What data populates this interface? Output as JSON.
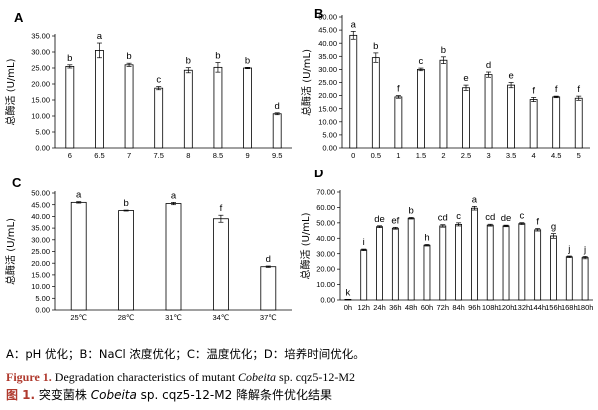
{
  "chart_data": [
    {
      "type": "bar",
      "panel": "A",
      "ylabel": "总酶活 (U/mL)",
      "ylim": [
        0,
        35
      ],
      "yticks": [
        "0.00",
        "5.00",
        "10.00",
        "15.00",
        "20.00",
        "25.00",
        "30.00",
        "35.00"
      ],
      "categories": [
        "6",
        "6.5",
        "7",
        "7.5",
        "8",
        "8.5",
        "9",
        "9.5"
      ],
      "values": [
        25.5,
        30.5,
        26.0,
        18.7,
        24.3,
        25.2,
        25.0,
        10.7
      ],
      "errors": [
        0.5,
        2.3,
        0.5,
        0.5,
        0.8,
        1.5,
        0.2,
        0.3
      ],
      "letters": [
        "b",
        "a",
        "b",
        "c",
        "b",
        "b",
        "b",
        "d"
      ]
    },
    {
      "type": "bar",
      "panel": "B",
      "ylabel": "总酶活 (U/mL)",
      "ylim": [
        0,
        50
      ],
      "yticks": [
        "0.00",
        "5.00",
        "10.00",
        "15.00",
        "20.00",
        "25.00",
        "30.00",
        "35.00",
        "40.00",
        "45.00",
        "50.00"
      ],
      "categories": [
        "0",
        "0.5",
        "1",
        "1.5",
        "2",
        "2.5",
        "3",
        "3.5",
        "4",
        "4.5",
        "5"
      ],
      "values": [
        43.0,
        34.5,
        19.5,
        30.0,
        33.5,
        23.0,
        28.0,
        24.0,
        18.5,
        19.5,
        19.0
      ],
      "errors": [
        1.5,
        1.8,
        0.5,
        0.5,
        1.3,
        1.0,
        1.0,
        1.0,
        0.8,
        0.3,
        0.8
      ],
      "letters": [
        "a",
        "b",
        "f",
        "c",
        "b",
        "e",
        "d",
        "e",
        "f",
        "f",
        "f"
      ]
    },
    {
      "type": "bar",
      "panel": "C",
      "ylabel": "总酶活 (U/mL)",
      "ylim": [
        0,
        50
      ],
      "yticks": [
        "0.00",
        "5.00",
        "10.00",
        "15.00",
        "20.00",
        "25.00",
        "30.00",
        "35.00",
        "40.00",
        "45.00",
        "50.00"
      ],
      "categories": [
        "25℃",
        "28℃",
        "31℃",
        "34℃",
        "37℃"
      ],
      "values": [
        46.0,
        42.5,
        45.5,
        39.0,
        18.5
      ],
      "errors": [
        0.3,
        0.2,
        0.5,
        1.5,
        0.3
      ],
      "letters": [
        "a",
        "b",
        "a",
        "f",
        "d"
      ]
    },
    {
      "type": "bar",
      "panel": "D",
      "ylabel": "总酶活 (U/mL)",
      "ylim": [
        0,
        70
      ],
      "yticks": [
        "0.00",
        "10.00",
        "20.00",
        "30.00",
        "40.00",
        "50.00",
        "60.00",
        "70.00"
      ],
      "categories": [
        "0h",
        "12h",
        "24h",
        "36h",
        "48h",
        "60h",
        "72h",
        "84h",
        "96h",
        "108h",
        "120h",
        "132h",
        "144h",
        "156h",
        "168h",
        "180h"
      ],
      "values": [
        0.2,
        32.5,
        47.5,
        46.5,
        53.0,
        35.5,
        48.0,
        49.0,
        59.5,
        48.5,
        48.0,
        49.5,
        45.5,
        41.5,
        28.0,
        27.5
      ],
      "errors": [
        0.1,
        0.5,
        0.6,
        0.6,
        0.5,
        0.5,
        0.8,
        1.0,
        1.2,
        0.6,
        0.5,
        0.6,
        0.8,
        1.5,
        0.5,
        0.8
      ],
      "letters": [
        "k",
        "i",
        "de",
        "ef",
        "b",
        "h",
        "cd",
        "c",
        "a",
        "cd",
        "de",
        "c",
        "f",
        "g",
        "j",
        "j"
      ]
    }
  ],
  "caption": {
    "legend_text": "A：pH 优化；B：NaCl 浓度优化；C：温度优化；D：培养时间优化。",
    "fig_label_en": "Figure 1.",
    "fig_title_en_pre": " Degradation characteristics of mutant ",
    "fig_title_en_species": "Cobeita",
    "fig_title_en_post": " sp. cqz5-12-M2",
    "fig_label_cn": "图 1.",
    "fig_title_cn_pre": " 突变菌株 ",
    "fig_title_cn_species": "Cobeita",
    "fig_title_cn_post": " sp. cqz5-12-M2 降解条件优化结果"
  }
}
